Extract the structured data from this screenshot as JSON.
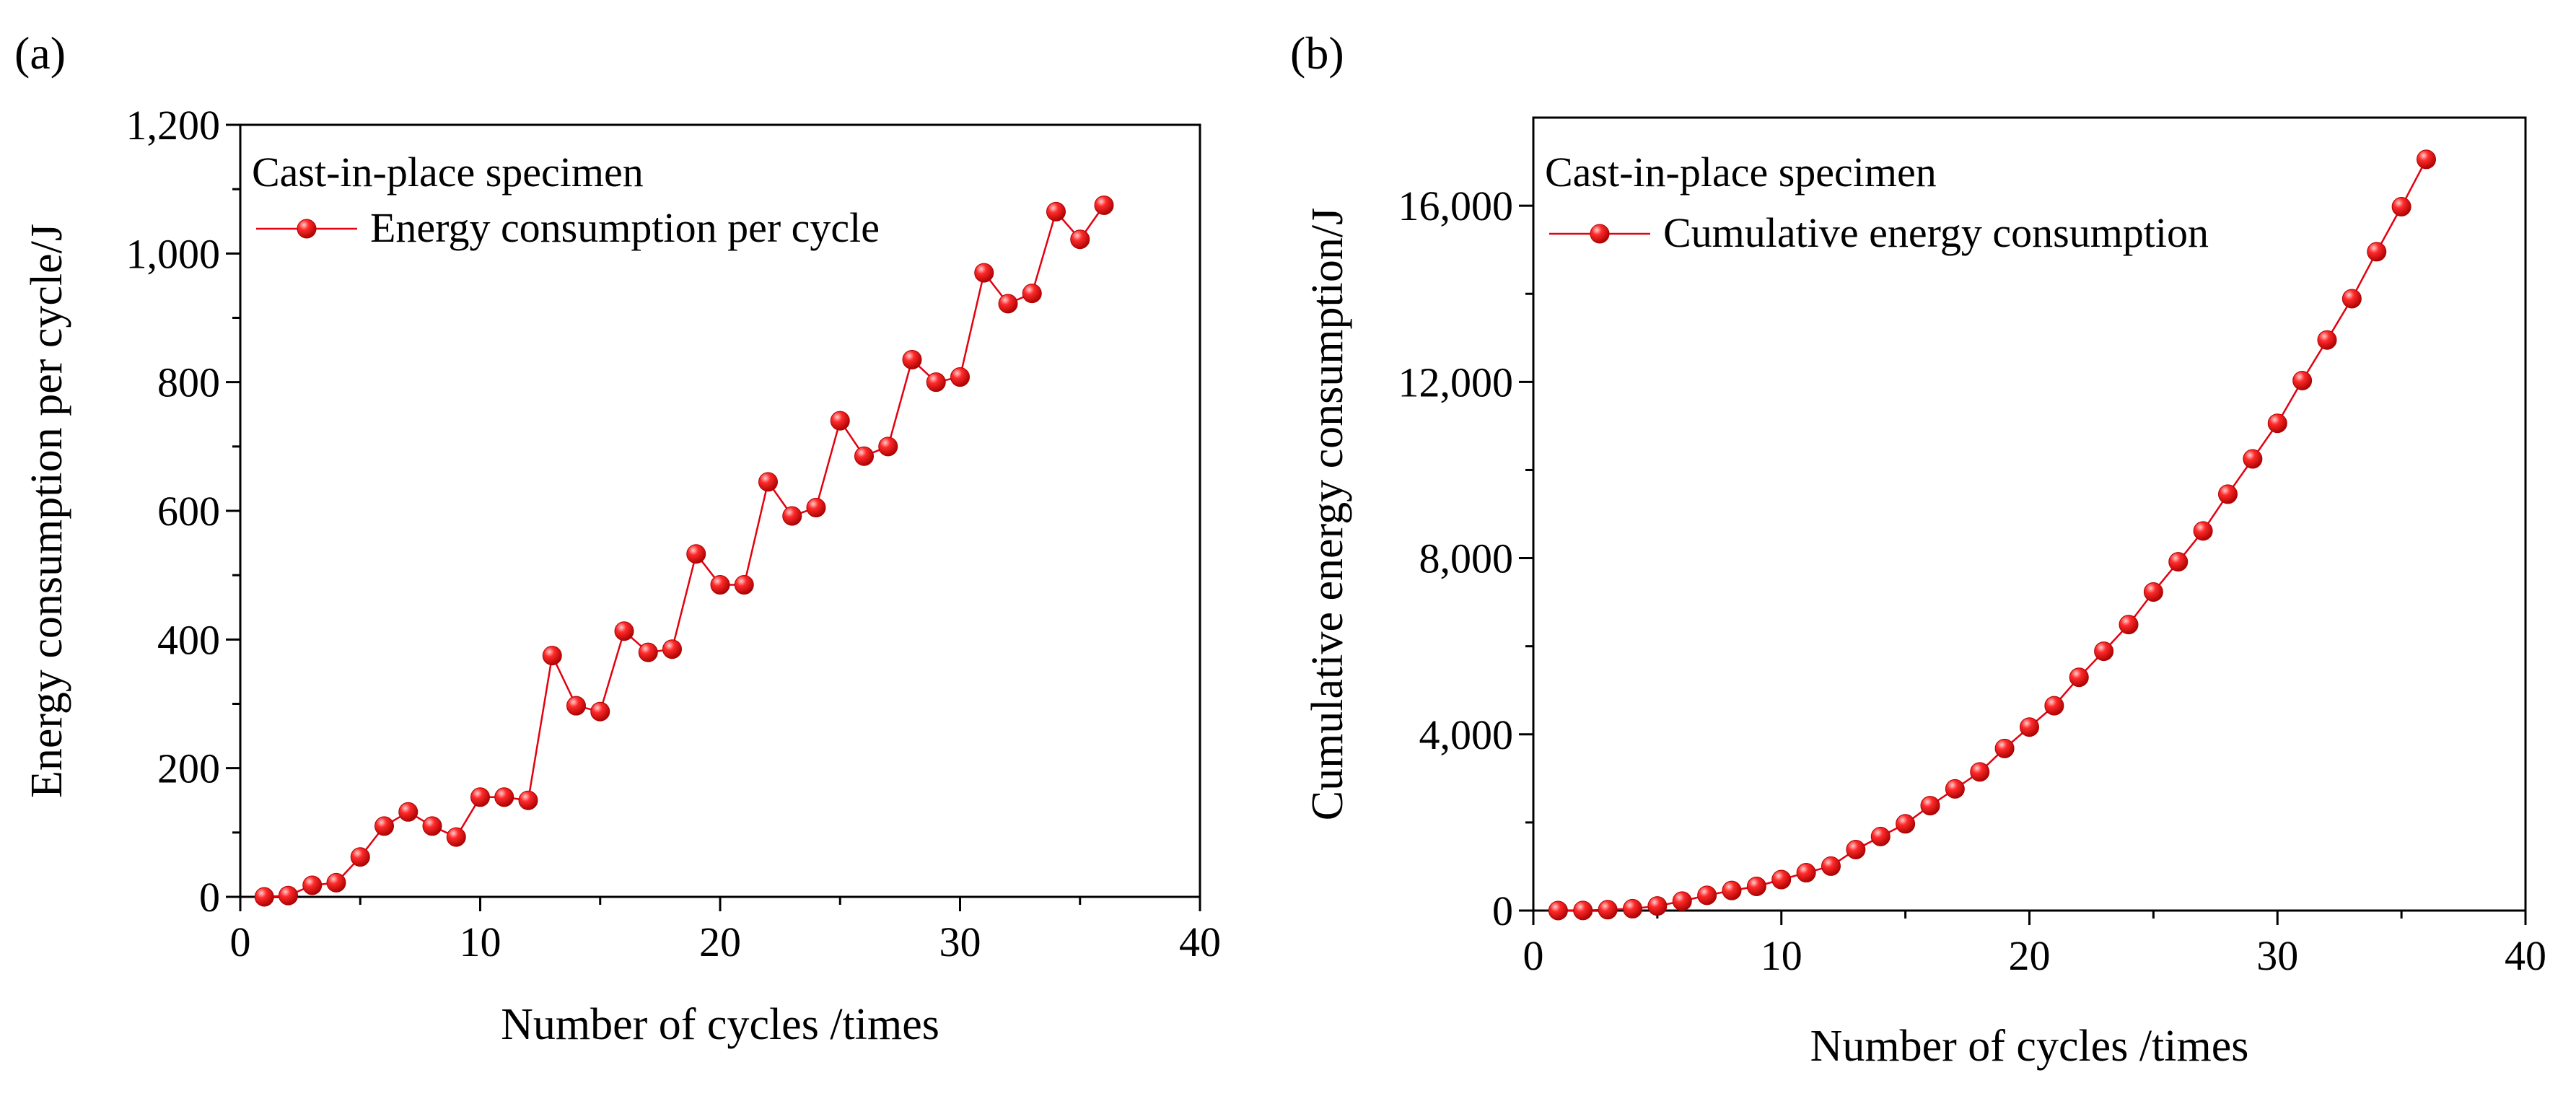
{
  "chart_data": [
    {
      "panel_label": "(a)",
      "type": "line",
      "title": "",
      "xlabel": "Number of cycles /times",
      "ylabel": "Energy consumption per cycle/J",
      "xlim": [
        0,
        40
      ],
      "ylim": [
        0,
        1200
      ],
      "xticks": [
        0,
        10,
        20,
        30,
        40
      ],
      "xtick_labels": [
        "0",
        "10",
        "20",
        "30",
        "40"
      ],
      "yticks": [
        0,
        200,
        400,
        600,
        800,
        1000,
        1200
      ],
      "ytick_labels": [
        "0",
        "200",
        "400",
        "600",
        "800",
        "1,000",
        "1,200"
      ],
      "annotation": "Cast-in-place specimen",
      "legend_position": "top-left",
      "grid": false,
      "series": [
        {
          "name": "Energy consumption per cycle",
          "color": "#e3000f",
          "x": [
            1,
            2,
            3,
            4,
            5,
            6,
            7,
            8,
            9,
            10,
            11,
            12,
            13,
            14,
            15,
            16,
            17,
            18,
            19,
            20,
            21,
            22,
            23,
            24,
            25,
            26,
            27,
            28,
            29,
            30,
            31,
            32,
            33,
            34,
            35,
            36
          ],
          "values": [
            0,
            2,
            18,
            22,
            62,
            110,
            132,
            110,
            93,
            155,
            155,
            150,
            375,
            297,
            288,
            413,
            380,
            385,
            533,
            485,
            485,
            645,
            592,
            605,
            740,
            685,
            700,
            835,
            800,
            808,
            970,
            922,
            938,
            1065,
            1022,
            1075
          ]
        }
      ]
    },
    {
      "panel_label": "(b)",
      "type": "line",
      "title": "",
      "xlabel": "Number of cycles /times",
      "ylabel": "Cumulative energy consumption/J",
      "xlim": [
        0,
        40
      ],
      "ylim": [
        0,
        18000
      ],
      "xticks": [
        0,
        10,
        20,
        30,
        40
      ],
      "xtick_labels": [
        "0",
        "10",
        "20",
        "30",
        "40"
      ],
      "yticks": [
        0,
        4000,
        8000,
        12000,
        16000
      ],
      "ytick_labels": [
        "0",
        "4,000",
        "8,000",
        "12,000",
        "16,000"
      ],
      "annotation": "Cast-in-place specimen",
      "legend_position": "top-left",
      "grid": false,
      "series": [
        {
          "name": "Cumulative energy consumption",
          "color": "#e3000f",
          "x": [
            1,
            2,
            3,
            4,
            5,
            6,
            7,
            8,
            9,
            10,
            11,
            12,
            13,
            14,
            15,
            16,
            17,
            18,
            19,
            20,
            21,
            22,
            23,
            24,
            25,
            26,
            27,
            28,
            29,
            30,
            31,
            32,
            33,
            34,
            35,
            36
          ],
          "values": [
            0,
            2,
            20,
            42,
            104,
            214,
            346,
            456,
            549,
            704,
            859,
            1009,
            1384,
            1681,
            1969,
            2382,
            2762,
            3147,
            3680,
            4165,
            4650,
            5295,
            5887,
            6492,
            7232,
            7917,
            8617,
            9452,
            10252,
            11060,
            12030,
            12952,
            13890,
            14955,
            15977,
            17052
          ]
        }
      ]
    }
  ]
}
